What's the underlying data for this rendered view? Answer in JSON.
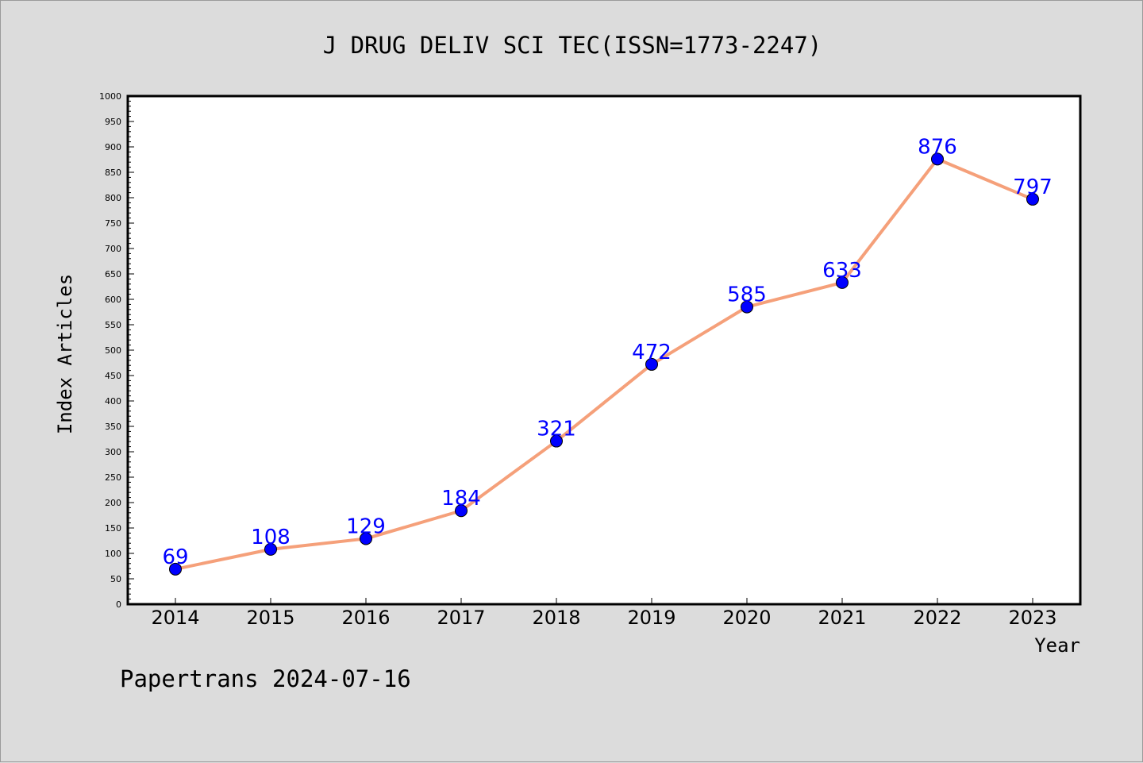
{
  "chart_data": {
    "type": "line",
    "title": "J DRUG DELIV SCI TEC(ISSN=1773-2247)",
    "xlabel": "Year",
    "ylabel": "Index Articles",
    "x": [
      "2014",
      "2015",
      "2016",
      "2017",
      "2018",
      "2019",
      "2020",
      "2021",
      "2022",
      "2023"
    ],
    "series": [
      {
        "values": [
          69,
          108,
          129,
          184,
          321,
          472,
          585,
          633,
          876,
          797
        ]
      }
    ],
    "ylim": [
      0,
      1000
    ],
    "ytick_step": 50,
    "grid": false,
    "data_labels": true,
    "colors": {
      "line": "#f5a07a",
      "marker": "#0000ff",
      "data_label": "#0000ff",
      "plot_background": "#ffffff",
      "figure_background": "#dcdcdc"
    }
  },
  "footer": "Papertrans 2024-07-16"
}
